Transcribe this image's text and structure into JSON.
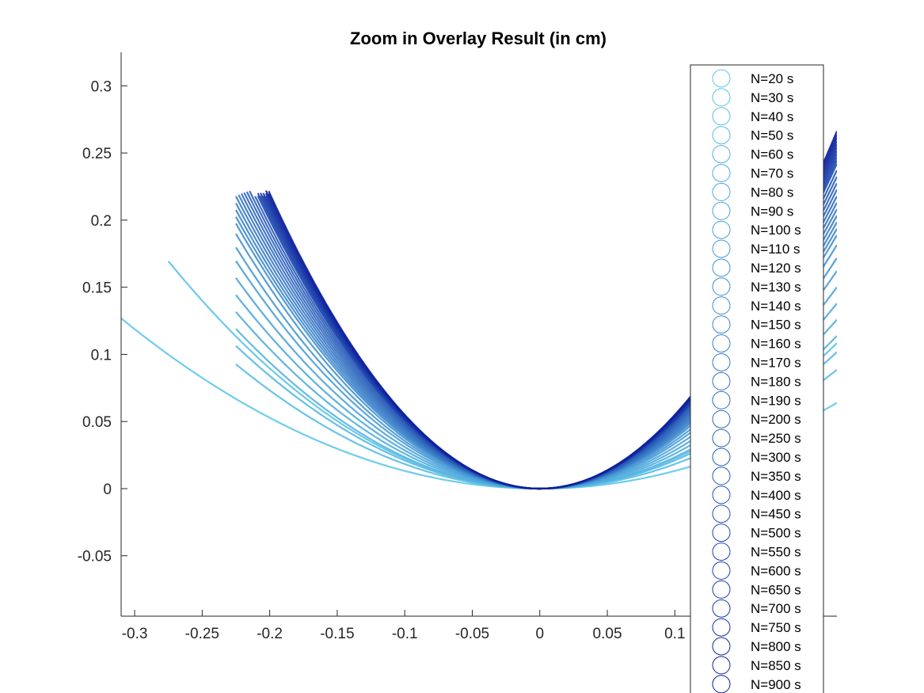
{
  "chart_data": {
    "type": "scatter",
    "title": "Zoom in Overlay Result (in cm)",
    "xlabel": "",
    "ylabel": "",
    "xlim": [
      -0.31,
      0.22
    ],
    "ylim": [
      -0.095,
      0.325
    ],
    "x_ticks": [
      "-0.3",
      "-0.25",
      "-0.2",
      "-0.15",
      "-0.1",
      "-0.05",
      "0",
      "0.05",
      "0.1"
    ],
    "x_tick_values": [
      -0.3,
      -0.25,
      -0.2,
      -0.15,
      -0.1,
      -0.05,
      0,
      0.05,
      0.1
    ],
    "y_ticks": [
      "0.3",
      "0.25",
      "0.2",
      "0.15",
      "0.1",
      "0.05",
      "0",
      "-0.05"
    ],
    "y_tick_values": [
      0.3,
      0.25,
      0.2,
      0.15,
      0.1,
      0.05,
      0,
      -0.05
    ],
    "grid": false,
    "legend_position": "right",
    "colors": {
      "light": "#5ec8ea",
      "dark": "#0d1f9c",
      "axis": "#262626"
    },
    "series": [
      {
        "name": "N=20 s",
        "curvature": 1.32,
        "x_range": [
          -0.31,
          0.22
        ]
      },
      {
        "name": "N=30 s",
        "curvature": 2.24,
        "x_range": [
          -0.275,
          0.22
        ]
      },
      {
        "name": "N=40 s",
        "curvature": 1.83,
        "x_range": [
          -0.225,
          0.22
        ]
      },
      {
        "name": "N=50 s",
        "curvature": 2.1,
        "x_range": [
          -0.225,
          0.22
        ]
      },
      {
        "name": "N=60 s",
        "curvature": 2.35,
        "x_range": [
          -0.225,
          0.22
        ]
      },
      {
        "name": "N=70 s",
        "curvature": 2.6,
        "x_range": [
          -0.225,
          0.22
        ]
      },
      {
        "name": "N=80 s",
        "curvature": 2.85,
        "x_range": [
          -0.225,
          0.22
        ]
      },
      {
        "name": "N=90 s",
        "curvature": 3.1,
        "x_range": [
          -0.225,
          0.22
        ]
      },
      {
        "name": "N=100 s",
        "curvature": 3.35,
        "x_range": [
          -0.225,
          0.22
        ]
      },
      {
        "name": "N=110 s",
        "curvature": 3.55,
        "x_range": [
          -0.225,
          0.22
        ]
      },
      {
        "name": "N=120 s",
        "curvature": 3.75,
        "x_range": [
          -0.225,
          0.22
        ]
      },
      {
        "name": "N=130 s",
        "curvature": 3.9,
        "x_range": [
          -0.225,
          0.22
        ]
      },
      {
        "name": "N=140 s",
        "curvature": 4.0,
        "x_range": [
          -0.225,
          0.22
        ]
      },
      {
        "name": "N=150 s",
        "curvature": 4.1,
        "x_range": [
          -0.225,
          0.22
        ]
      },
      {
        "name": "N=160 s",
        "curvature": 4.2,
        "x_range": [
          -0.225,
          0.22
        ]
      },
      {
        "name": "N=170 s",
        "curvature": 4.3,
        "x_range": [
          -0.225,
          0.22
        ]
      },
      {
        "name": "N=180 s",
        "curvature": 4.4,
        "x_range": [
          -0.225,
          0.22
        ]
      },
      {
        "name": "N=190 s",
        "curvature": 4.5,
        "x_range": [
          -0.225,
          0.22
        ]
      },
      {
        "name": "N=200 s",
        "curvature": 4.6,
        "x_range": [
          -0.225,
          0.22
        ]
      },
      {
        "name": "N=250 s",
        "curvature": 4.7,
        "x_range": [
          -0.225,
          0.22
        ]
      },
      {
        "name": "N=300 s",
        "curvature": 4.8,
        "x_range": [
          -0.225,
          0.22
        ]
      },
      {
        "name": "N=350 s",
        "curvature": 4.9,
        "x_range": [
          -0.225,
          0.22
        ]
      },
      {
        "name": "N=400 s",
        "curvature": 5.0,
        "x_range": [
          -0.225,
          0.22
        ]
      },
      {
        "name": "N=450 s",
        "curvature": 5.05,
        "x_range": [
          -0.225,
          0.22
        ]
      },
      {
        "name": "N=500 s",
        "curvature": 5.1,
        "x_range": [
          -0.225,
          0.22
        ]
      },
      {
        "name": "N=550 s",
        "curvature": 5.15,
        "x_range": [
          -0.225,
          0.22
        ]
      },
      {
        "name": "N=600 s",
        "curvature": 5.2,
        "x_range": [
          -0.225,
          0.22
        ]
      },
      {
        "name": "N=650 s",
        "curvature": 5.25,
        "x_range": [
          -0.225,
          0.22
        ]
      },
      {
        "name": "N=700 s",
        "curvature": 5.3,
        "x_range": [
          -0.225,
          0.22
        ]
      },
      {
        "name": "N=750 s",
        "curvature": 5.35,
        "x_range": [
          -0.225,
          0.22
        ]
      },
      {
        "name": "N=800 s",
        "curvature": 5.4,
        "x_range": [
          -0.225,
          0.22
        ]
      },
      {
        "name": "N=850 s",
        "curvature": 5.45,
        "x_range": [
          -0.225,
          0.22
        ]
      },
      {
        "name": "N=900 s",
        "curvature": 5.5,
        "x_range": [
          -0.225,
          0.22
        ]
      }
    ]
  }
}
